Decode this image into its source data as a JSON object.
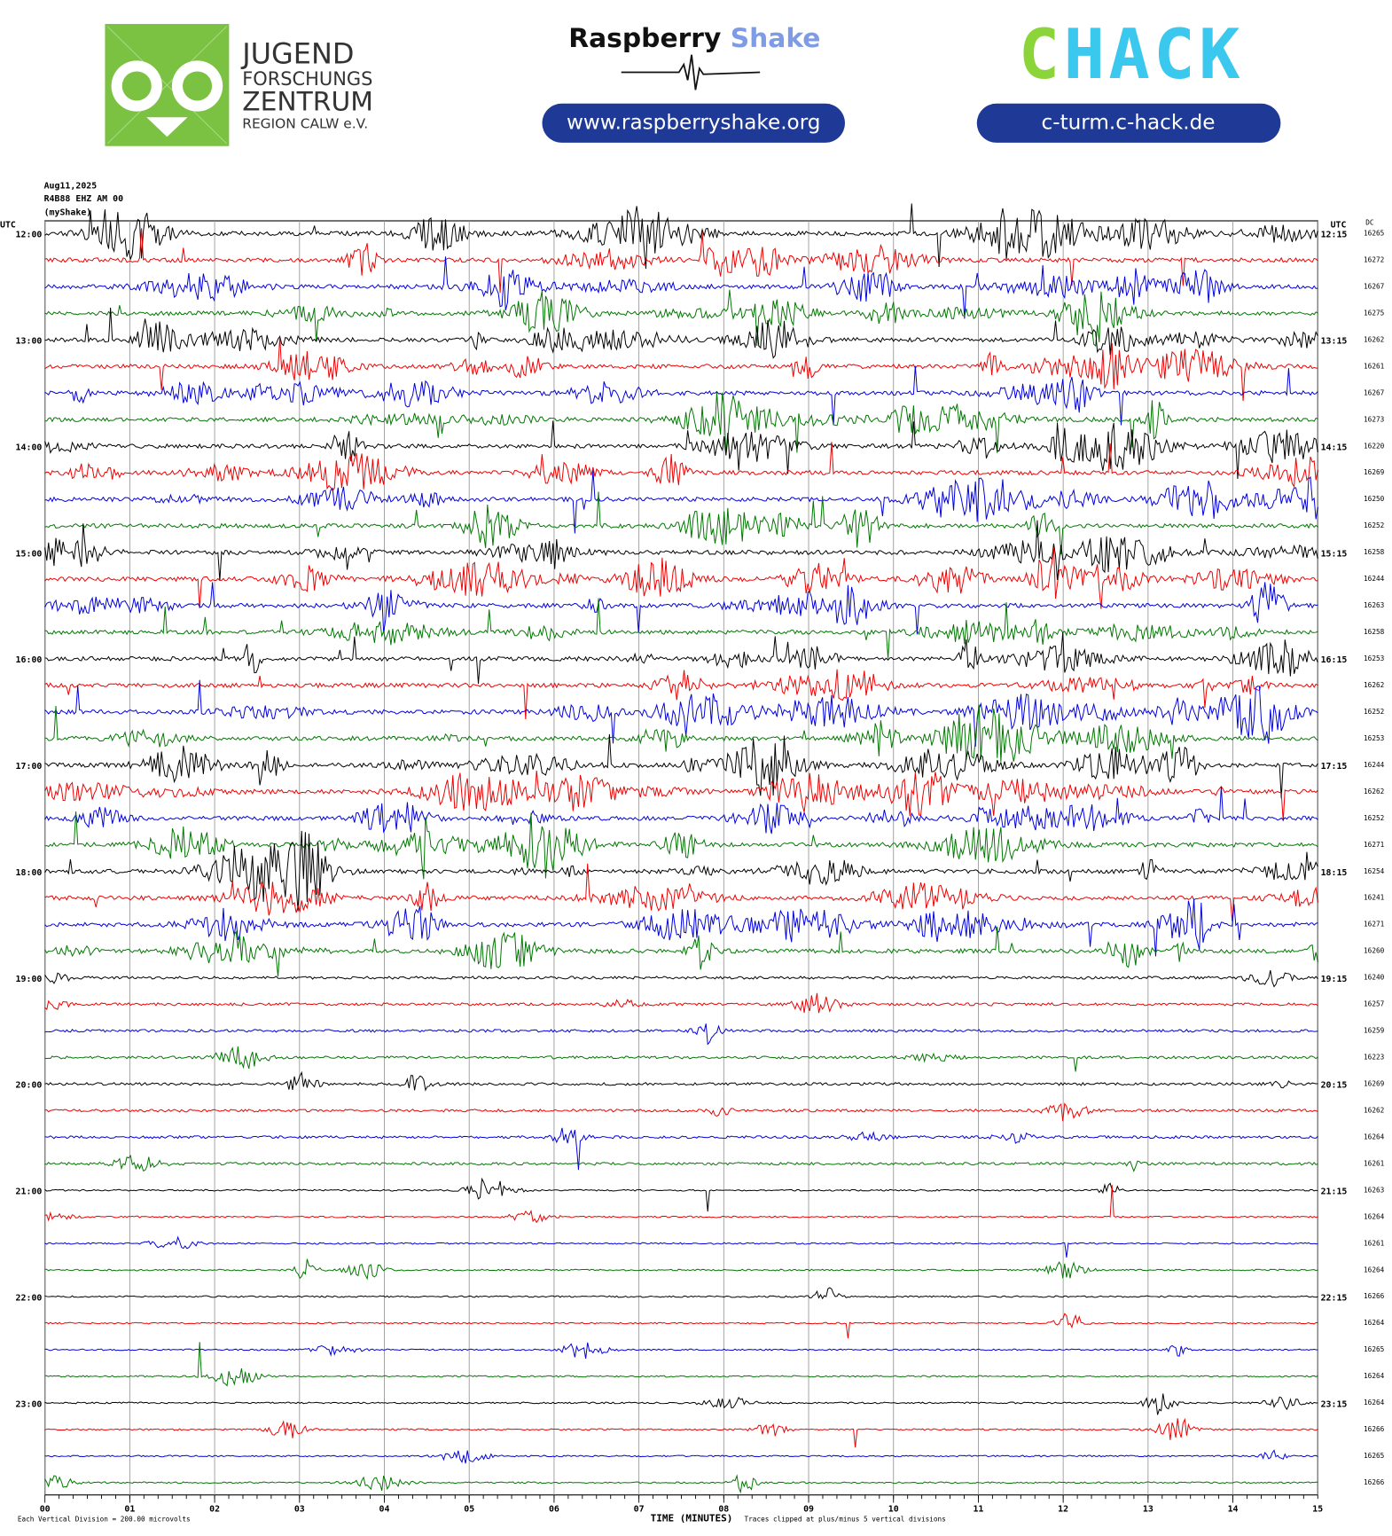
{
  "header": {
    "jfz": [
      "JUGEND",
      "FORSCHUNGS",
      "ZENTRUM",
      "REGION CALW e.V."
    ],
    "rs_brand": [
      "Raspberry",
      "Shake"
    ],
    "rs_url": "www.raspberryshake.org",
    "chack_brand": [
      "C",
      "HACK"
    ],
    "chack_url": "c-turm.c-hack.de"
  },
  "plot": {
    "date": "Aug11,2025",
    "station": "R4B88 EHZ AM 00",
    "source": "(myShake)",
    "left_unit": "UTC",
    "right_unit": "UTC",
    "dc_label": "DC",
    "left_times": [
      "12:00",
      "13:00",
      "14:00",
      "15:00",
      "16:00",
      "17:00",
      "18:00",
      "19:00",
      "20:00",
      "21:00",
      "22:00",
      "23:00"
    ],
    "right_times": [
      "12:15",
      "13:15",
      "14:15",
      "15:15",
      "16:15",
      "17:15",
      "18:15",
      "19:15",
      "20:15",
      "21:15",
      "22:15",
      "23:15"
    ],
    "dc": [
      16265,
      16272,
      16267,
      16275,
      16262,
      16261,
      16267,
      16273,
      16220,
      16269,
      16250,
      16252,
      16258,
      16244,
      16263,
      16258,
      16253,
      16262,
      16252,
      16253,
      16244,
      16262,
      16252,
      16271,
      16254,
      16241,
      16271,
      16260,
      16240,
      16257,
      16259,
      16223,
      16269,
      16262,
      16264,
      16261,
      16263,
      16264,
      16261,
      16264,
      16266,
      16264,
      16265,
      16264,
      16264,
      16266,
      16265,
      16266
    ],
    "minutes": [
      "00",
      "01",
      "02",
      "03",
      "04",
      "05",
      "06",
      "07",
      "08",
      "09",
      "10",
      "11",
      "12",
      "13",
      "14",
      "15"
    ],
    "x_label": "TIME (MINUTES)",
    "scale_note": "Each Vertical Division =  200.00 microvolts",
    "clip_note": "Traces clipped at plus/minus 5 vertical divisions"
  }
}
